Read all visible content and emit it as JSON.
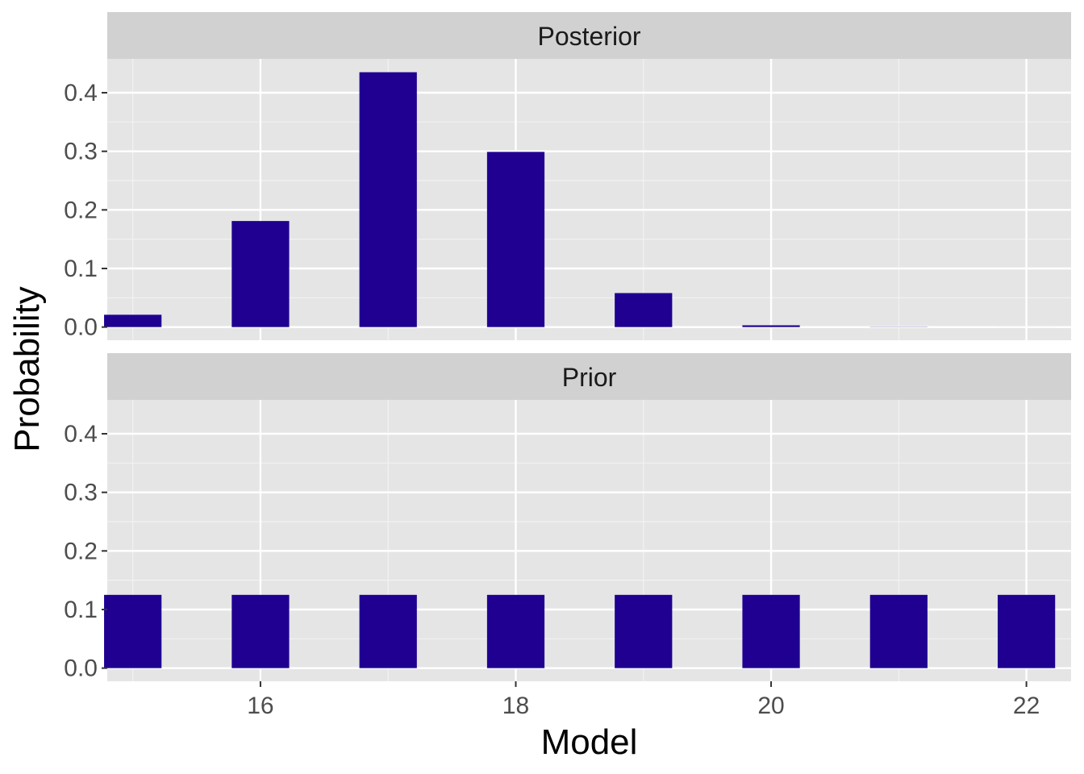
{
  "chart_data": {
    "type": "bar",
    "xlabel": "Model",
    "ylabel": "Probability",
    "xlim": [
      14.8,
      22.35
    ],
    "ylim": [
      -0.0225,
      0.4578
    ],
    "x_ticks": [
      16,
      18,
      20,
      22
    ],
    "x_tick_labels": [
      "16",
      "18",
      "20",
      "22"
    ],
    "y_ticks": [
      0.0,
      0.1,
      0.2,
      0.3,
      0.4
    ],
    "y_tick_labels": [
      "0.0",
      "0.1",
      "0.2",
      "0.3",
      "0.4"
    ],
    "bar_width": 0.45,
    "bar_color": "#1f0090",
    "panel_background": "#e5e5e5",
    "strip_background": "#d1d1d1",
    "grid": true,
    "legend": "none",
    "facets": [
      {
        "name": "Posterior",
        "x": [
          15,
          16,
          17,
          18,
          19,
          20,
          21,
          22
        ],
        "values": [
          0.021,
          0.181,
          0.435,
          0.299,
          0.058,
          0.003,
          0.0003,
          2e-05
        ]
      },
      {
        "name": "Prior",
        "x": [
          15,
          16,
          17,
          18,
          19,
          20,
          21,
          22
        ],
        "values": [
          0.125,
          0.125,
          0.125,
          0.125,
          0.125,
          0.125,
          0.125,
          0.125
        ]
      }
    ]
  }
}
